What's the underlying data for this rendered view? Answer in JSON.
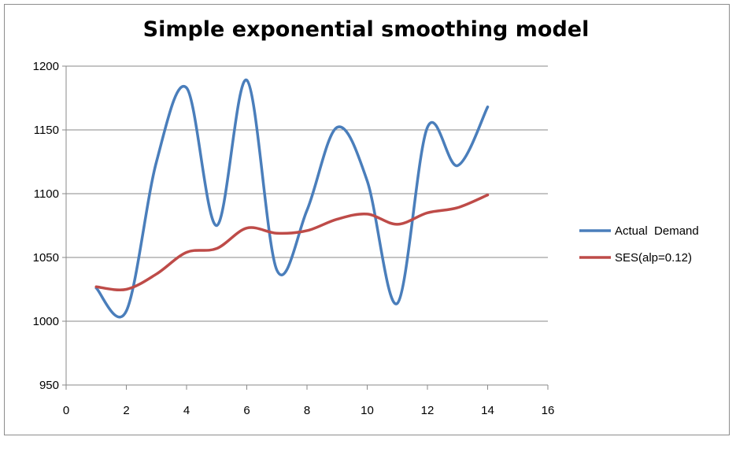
{
  "chart_data": {
    "type": "line",
    "title": "Simple exponential smoothing model",
    "xlabel": "",
    "ylabel": "",
    "xlim": [
      0,
      16
    ],
    "ylim": [
      950,
      1200
    ],
    "x_ticks": [
      0,
      2,
      4,
      6,
      8,
      10,
      12,
      14,
      16
    ],
    "y_ticks": [
      950,
      1000,
      1050,
      1100,
      1150,
      1200
    ],
    "grid": "horizontal",
    "legend_position": "right",
    "smooth": true,
    "series": [
      {
        "name": "Actual  Demand",
        "color": "#4a7ebb",
        "x": [
          1,
          2,
          3,
          4,
          5,
          6,
          7,
          8,
          9,
          10,
          11,
          12,
          13,
          14
        ],
        "y": [
          1026,
          1008,
          1125,
          1183,
          1075,
          1189,
          1040,
          1087,
          1152,
          1110,
          1014,
          1152,
          1122,
          1168
        ]
      },
      {
        "name": "SES(alp=0.12)",
        "color": "#be4b48",
        "x": [
          1,
          2,
          3,
          4,
          5,
          6,
          7,
          8,
          9,
          10,
          11,
          12,
          13,
          14
        ],
        "y": [
          1027,
          1025,
          1037,
          1054,
          1057,
          1073,
          1069,
          1071,
          1080,
          1084,
          1076,
          1085,
          1089,
          1099
        ]
      }
    ]
  }
}
